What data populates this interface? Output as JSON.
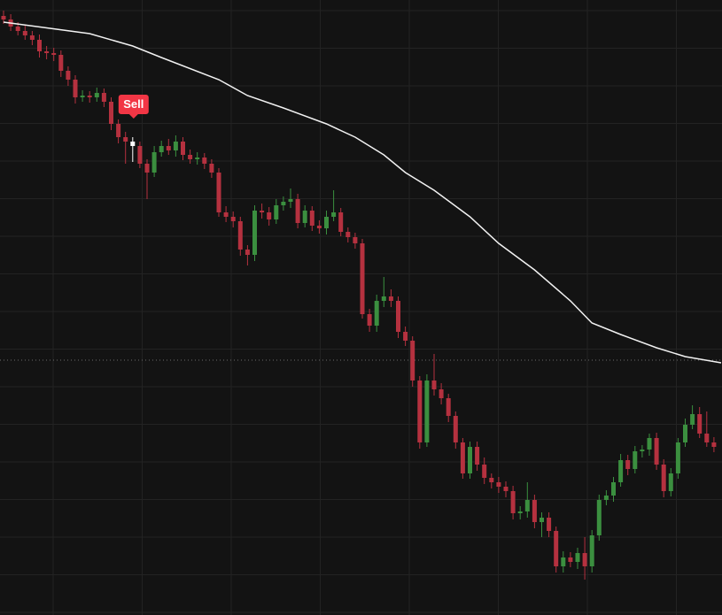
{
  "chart_data": {
    "type": "candlestick",
    "ylim": [
      0,
      695
    ],
    "colors": {
      "up": "#3b8f3f",
      "down": "#b5313f",
      "selected": "#ffffff"
    },
    "open": [
      677,
      673,
      665,
      660,
      655,
      650,
      637,
      635,
      633,
      615,
      605,
      585,
      587,
      585,
      590,
      580,
      555,
      540,
      535,
      530,
      510,
      500,
      523,
      530,
      525,
      535,
      520,
      515,
      517,
      510,
      500,
      455,
      450,
      445,
      413,
      407,
      457,
      455,
      447,
      463,
      467,
      470,
      443,
      457,
      440,
      437,
      450,
      455,
      433,
      427,
      420,
      340,
      327,
      355,
      360,
      355,
      320,
      310,
      265,
      195,
      265,
      255,
      245,
      225,
      195,
      160,
      190,
      170,
      155,
      150,
      145,
      140,
      115,
      117,
      130,
      105,
      110,
      95,
      55,
      65,
      60,
      70,
      55,
      90,
      130,
      135,
      150,
      175,
      165,
      185,
      187,
      200,
      170,
      140,
      160,
      195,
      215,
      227,
      205,
      195
    ],
    "high": [
      683,
      679,
      670,
      666,
      660,
      656,
      643,
      641,
      638,
      620,
      610,
      593,
      592,
      596,
      595,
      585,
      560,
      546,
      540,
      535,
      515,
      530,
      536,
      538,
      542,
      540,
      526,
      523,
      522,
      515,
      505,
      462,
      456,
      450,
      418,
      463,
      465,
      461,
      470,
      473,
      482,
      476,
      463,
      462,
      446,
      457,
      480,
      460,
      438,
      432,
      425,
      346,
      362,
      382,
      368,
      360,
      326,
      315,
      270,
      272,
      295,
      262,
      250,
      230,
      200,
      196,
      196,
      178,
      160,
      156,
      151,
      146,
      123,
      150,
      136,
      116,
      116,
      100,
      72,
      71,
      76,
      88,
      96,
      136,
      141,
      156,
      182,
      181,
      191,
      192,
      205,
      206,
      176,
      166,
      200,
      222,
      237,
      235,
      230,
      201
    ],
    "low": [
      668,
      660,
      655,
      650,
      644,
      630,
      628,
      626,
      608,
      598,
      578,
      580,
      579,
      580,
      574,
      548,
      533,
      510,
      512,
      505,
      470,
      495,
      518,
      520,
      518,
      514,
      510,
      509,
      504,
      494,
      450,
      444,
      438,
      406,
      395,
      400,
      448,
      440,
      442,
      457,
      460,
      437,
      438,
      434,
      431,
      430,
      445,
      428,
      421,
      414,
      335,
      320,
      320,
      348,
      348,
      313,
      304,
      258,
      188,
      190,
      248,
      238,
      218,
      188,
      154,
      154,
      163,
      148,
      143,
      138,
      133,
      108,
      108,
      110,
      98,
      88,
      88,
      48,
      48,
      54,
      52,
      40,
      48,
      84,
      124,
      128,
      145,
      158,
      160,
      178,
      180,
      164,
      133,
      134,
      154,
      190,
      210,
      200,
      190,
      184
    ],
    "close": [
      673,
      665,
      660,
      655,
      650,
      637,
      635,
      633,
      615,
      605,
      585,
      587,
      585,
      590,
      580,
      555,
      540,
      535,
      530,
      510,
      500,
      523,
      530,
      525,
      535,
      520,
      515,
      517,
      510,
      500,
      455,
      450,
      445,
      413,
      407,
      457,
      455,
      447,
      463,
      467,
      470,
      443,
      457,
      440,
      437,
      450,
      455,
      433,
      427,
      420,
      340,
      327,
      355,
      360,
      355,
      320,
      310,
      265,
      195,
      265,
      255,
      245,
      225,
      195,
      160,
      190,
      170,
      155,
      150,
      145,
      140,
      115,
      117,
      130,
      105,
      110,
      95,
      55,
      65,
      60,
      70,
      55,
      90,
      130,
      135,
      150,
      175,
      165,
      185,
      187,
      200,
      170,
      140,
      160,
      195,
      215,
      227,
      205,
      195,
      190
    ],
    "moving_average": {
      "color": "#f2f2f2",
      "x": [
        0,
        12,
        18,
        22,
        30,
        34,
        39,
        45,
        49,
        53,
        56,
        60,
        65,
        69,
        74,
        79,
        82,
        86,
        91,
        95,
        100
      ],
      "values": [
        670,
        657,
        643,
        630,
        605,
        587,
        573,
        555,
        540,
        520,
        500,
        480,
        450,
        420,
        390,
        355,
        330,
        317,
        302,
        292,
        285
      ]
    },
    "price_line": 288,
    "signals": [
      {
        "index": 18,
        "label": "Sell",
        "color": "#f23645"
      }
    ]
  }
}
